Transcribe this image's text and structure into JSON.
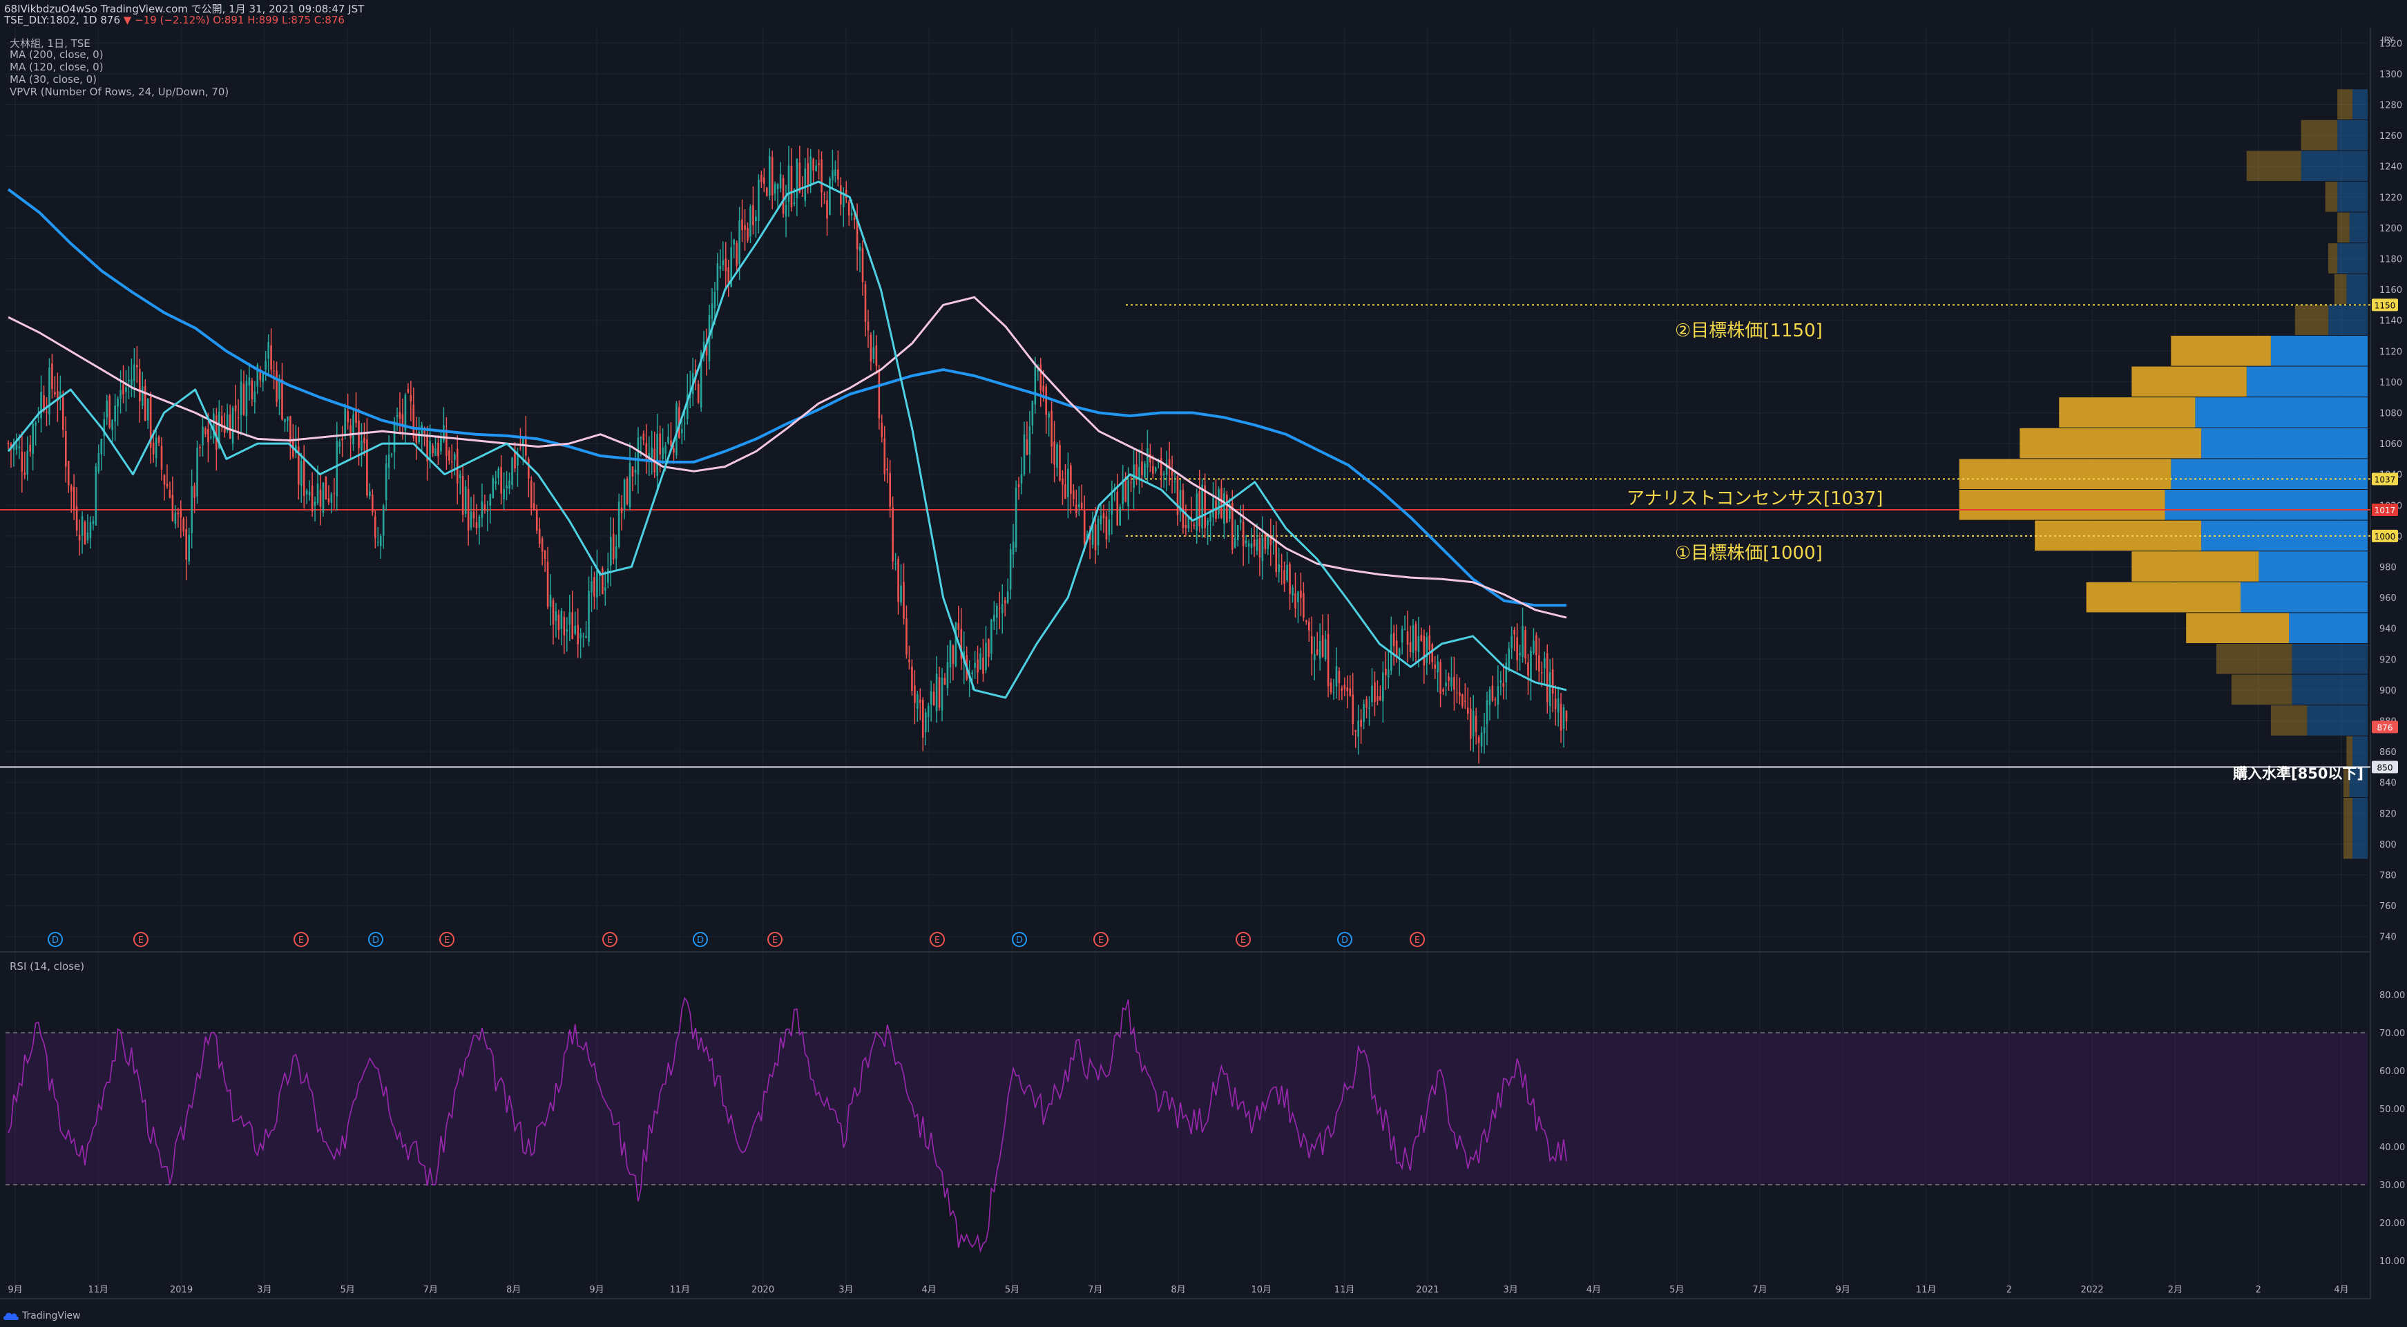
{
  "header": {
    "line1": "68IVikbdzuO4wSo TradingView.com で公開, 1月 31, 2021 09:08:47 JST",
    "symbol": "TSE_DLY:1802, 1D 876",
    "change": "▼ −19 (−2.12%)",
    "ohlc": "O:891 H:899 L:875 C:876"
  },
  "indicators": {
    "title": "大林組, 1日, TSE",
    "ma200": "MA (200, close, 0)",
    "ma120": "MA (120, close, 0)",
    "ma30": "MA (30, close, 0)",
    "vpvr": "VPVR (Number Of Rows, 24, Up/Down, 70)",
    "rsi": "RSI (14, close)"
  },
  "footer": {
    "brand": "TradingView",
    "logo_icon": "tradingview-cloud-icon"
  },
  "colors": {
    "background": "#131722",
    "up": "#26a69a",
    "down": "#ef5350",
    "ma200": "#2196f3",
    "ma120": "#f4c6e0",
    "ma30": "#4dd0e1",
    "rsi": "#9c27b0",
    "vp_up": "#1e88e5",
    "vp_down": "#e0a526"
  },
  "chart_data": {
    "type": "candlestick",
    "currency": "JPY",
    "price_axis": {
      "min": 730,
      "max": 1330,
      "ticks": [
        740,
        760,
        780,
        800,
        820,
        840,
        860,
        880,
        900,
        920,
        940,
        960,
        980,
        1000,
        1020,
        1040,
        1060,
        1080,
        1100,
        1120,
        1140,
        1160,
        1180,
        1200,
        1220,
        1240,
        1260,
        1280,
        1300,
        1320
      ]
    },
    "time_axis": [
      "9月",
      "11月",
      "2019",
      "3月",
      "5月",
      "7月",
      "8月",
      "9月",
      "11月",
      "2020",
      "3月",
      "4月",
      "5月",
      "7月",
      "8月",
      "10月",
      "11月",
      "2021",
      "3月",
      "4月",
      "5月",
      "7月",
      "9月",
      "11月",
      "2",
      "2022",
      "2月",
      "2",
      "4月"
    ],
    "ma200": [
      1225,
      1210,
      1190,
      1172,
      1158,
      1145,
      1135,
      1120,
      1108,
      1098,
      1090,
      1083,
      1075,
      1070,
      1068,
      1066,
      1065,
      1063,
      1058,
      1052,
      1050,
      1048,
      1048,
      1055,
      1063,
      1073,
      1082,
      1092,
      1098,
      1104,
      1108,
      1104,
      1098,
      1092,
      1085,
      1080,
      1078,
      1080,
      1080,
      1077,
      1072,
      1066,
      1056,
      1046,
      1030,
      1012,
      992,
      972,
      958,
      955,
      955
    ],
    "ma120": [
      1142,
      1132,
      1120,
      1108,
      1096,
      1088,
      1080,
      1070,
      1063,
      1062,
      1064,
      1066,
      1068,
      1066,
      1064,
      1062,
      1060,
      1058,
      1060,
      1066,
      1058,
      1045,
      1042,
      1045,
      1055,
      1070,
      1086,
      1096,
      1108,
      1125,
      1150,
      1155,
      1136,
      1110,
      1088,
      1068,
      1058,
      1048,
      1034,
      1022,
      1007,
      992,
      982,
      978,
      975,
      973,
      972,
      970,
      962,
      952,
      947
    ],
    "ma30": [
      1055,
      1080,
      1095,
      1070,
      1040,
      1080,
      1095,
      1050,
      1060,
      1060,
      1040,
      1050,
      1060,
      1060,
      1040,
      1050,
      1060,
      1040,
      1010,
      975,
      980,
      1040,
      1100,
      1160,
      1190,
      1222,
      1230,
      1220,
      1160,
      1070,
      960,
      900,
      895,
      930,
      960,
      1020,
      1040,
      1030,
      1010,
      1020,
      1035,
      1005,
      985,
      958,
      930,
      915,
      930,
      935,
      915,
      905,
      900
    ],
    "candles_close": [
      1060,
      1050,
      1090,
      1100,
      1020,
      1000,
      1080,
      1090,
      1110,
      1060,
      1030,
      990,
      1060,
      1070,
      1080,
      1100,
      1120,
      1090,
      1040,
      1030,
      1030,
      1070,
      1060,
      1000,
      1070,
      1080,
      1060,
      1060,
      1040,
      1000,
      1020,
      1040,
      1060,
      1000,
      940,
      940,
      950,
      970,
      1010,
      1050,
      1050,
      1060,
      1080,
      1100,
      1160,
      1180,
      1200,
      1240,
      1220,
      1230,
      1240,
      1220,
      1230,
      1180,
      1100,
      1000,
      920,
      880,
      900,
      930,
      900,
      930,
      960,
      1040,
      1100,
      1060,
      1030,
      1010,
      1000,
      1020,
      1040,
      1060,
      1040,
      1020,
      1020,
      1020,
      1010,
      990,
      1000,
      980,
      960,
      940,
      920,
      900,
      880,
      900,
      920,
      940,
      930,
      910,
      900,
      880,
      880,
      910,
      930,
      920,
      900,
      880
    ],
    "analyst_consensus": {
      "label": "アナリストコンセンサス[1037]",
      "value": 1037
    },
    "target1": {
      "label": "①目標株価[1000]",
      "value": 1000
    },
    "target2": {
      "label": "②目標株価[1150]",
      "value": 1150
    },
    "buy_level": {
      "label": "購入水準[850以下]",
      "value": 850
    },
    "red_line": 1017,
    "last_price": 876,
    "price_tags": [
      "1150",
      "1037",
      "1017",
      "1000",
      "876",
      "850"
    ],
    "events": [
      {
        "type": "D",
        "date": "2018-10"
      },
      {
        "type": "E",
        "date": "2018-11"
      },
      {
        "type": "E",
        "date": "2019-02"
      },
      {
        "type": "D",
        "date": "2019-03"
      },
      {
        "type": "E",
        "date": "2019-05"
      },
      {
        "type": "E",
        "date": "2019-08"
      },
      {
        "type": "D",
        "date": "2019-09"
      },
      {
        "type": "E",
        "date": "2019-11"
      },
      {
        "type": "E",
        "date": "2020-02"
      },
      {
        "type": "D",
        "date": "2020-03"
      },
      {
        "type": "E",
        "date": "2020-05"
      },
      {
        "type": "E",
        "date": "2020-08"
      },
      {
        "type": "D",
        "date": "2020-09"
      },
      {
        "type": "E",
        "date": "2020-11"
      }
    ],
    "volume_profile": {
      "rows": [
        {
          "low": 1270,
          "high": 1290,
          "up": 0.05,
          "down": 0.05
        },
        {
          "low": 1250,
          "high": 1270,
          "up": 0.1,
          "down": 0.12
        },
        {
          "low": 1230,
          "high": 1250,
          "up": 0.22,
          "down": 0.18
        },
        {
          "low": 1210,
          "high": 1230,
          "up": 0.1,
          "down": 0.04
        },
        {
          "low": 1190,
          "high": 1210,
          "up": 0.06,
          "down": 0.04
        },
        {
          "low": 1170,
          "high": 1190,
          "up": 0.1,
          "down": 0.03
        },
        {
          "low": 1150,
          "high": 1170,
          "up": 0.07,
          "down": 0.04
        },
        {
          "low": 1130,
          "high": 1150,
          "up": 0.13,
          "down": 0.11
        },
        {
          "low": 1110,
          "high": 1130,
          "up": 0.32,
          "down": 0.33
        },
        {
          "low": 1090,
          "high": 1110,
          "up": 0.4,
          "down": 0.38
        },
        {
          "low": 1070,
          "high": 1090,
          "up": 0.57,
          "down": 0.45
        },
        {
          "low": 1050,
          "high": 1070,
          "up": 0.55,
          "down": 0.6
        },
        {
          "low": 1030,
          "high": 1050,
          "up": 0.65,
          "down": 0.7
        },
        {
          "low": 1010,
          "high": 1030,
          "up": 0.67,
          "down": 0.68
        },
        {
          "low": 990,
          "high": 1010,
          "up": 0.55,
          "down": 0.55
        },
        {
          "low": 970,
          "high": 990,
          "up": 0.36,
          "down": 0.42
        },
        {
          "low": 950,
          "high": 970,
          "up": 0.42,
          "down": 0.51
        },
        {
          "low": 930,
          "high": 950,
          "up": 0.26,
          "down": 0.34
        },
        {
          "low": 910,
          "high": 930,
          "up": 0.25,
          "down": 0.25
        },
        {
          "low": 890,
          "high": 910,
          "up": 0.25,
          "down": 0.2
        },
        {
          "low": 870,
          "high": 890,
          "up": 0.2,
          "down": 0.12
        },
        {
          "low": 850,
          "high": 870,
          "up": 0.05,
          "down": 0.02
        },
        {
          "low": 830,
          "high": 850,
          "up": 0.06,
          "down": 0.02
        },
        {
          "low": 790,
          "high": 830,
          "up": 0.05,
          "down": 0.03
        }
      ]
    },
    "rsi": {
      "overbought": 70,
      "oversold": 30,
      "ticks": [
        10,
        20,
        30,
        40,
        50,
        60,
        70,
        80
      ],
      "values": [
        45,
        60,
        72,
        50,
        40,
        38,
        55,
        68,
        62,
        45,
        30,
        42,
        60,
        70,
        52,
        45,
        40,
        48,
        62,
        58,
        40,
        35,
        55,
        67,
        55,
        42,
        38,
        30,
        48,
        62,
        70,
        58,
        48,
        40,
        45,
        58,
        72,
        62,
        55,
        40,
        28,
        50,
        60,
        78,
        66,
        58,
        45,
        40,
        52,
        66,
        75,
        60,
        50,
        42,
        55,
        70,
        68,
        58,
        45,
        38,
        20,
        12,
        15,
        40,
        60,
        55,
        48,
        58,
        66,
        58,
        62,
        78,
        60,
        52,
        50,
        46,
        48,
        58,
        52,
        46,
        50,
        55,
        42,
        38,
        45,
        55,
        65,
        52,
        40,
        35,
        48,
        58,
        42,
        35,
        45,
        55,
        62,
        48,
        40,
        38
      ]
    }
  }
}
